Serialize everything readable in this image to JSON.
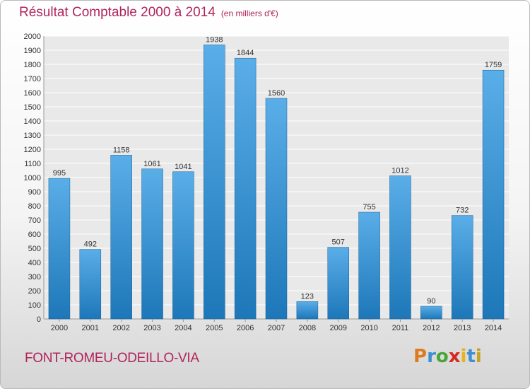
{
  "title": "Résultat Comptable 2000 à 2014",
  "subtitle": "(en milliers d'€)",
  "place": "FONT-ROMEU-ODEILLO-VIA",
  "logo": {
    "letters": [
      "P",
      "r",
      "o",
      "x",
      "i",
      "t",
      "i"
    ],
    "colors": [
      "#e07a1f",
      "#3f8fd0",
      "#4aa536",
      "#d4291f",
      "#e8b31d",
      "#3f8fd0",
      "#c7a21d"
    ]
  },
  "colors": {
    "bar_top": "#5aaee8",
    "bar_bottom": "#1d77b8",
    "title": "#b0245a"
  },
  "chart_data": {
    "type": "bar",
    "categories": [
      "2000",
      "2001",
      "2002",
      "2003",
      "2004",
      "2005",
      "2006",
      "2007",
      "2008",
      "2009",
      "2010",
      "2011",
      "2012",
      "2013",
      "2014"
    ],
    "values": [
      995,
      492,
      1158,
      1061,
      1041,
      1938,
      1844,
      1560,
      123,
      507,
      755,
      1012,
      90,
      732,
      1759
    ],
    "ylim": [
      0,
      2000
    ],
    "ytick_step": 100,
    "grid": true
  }
}
